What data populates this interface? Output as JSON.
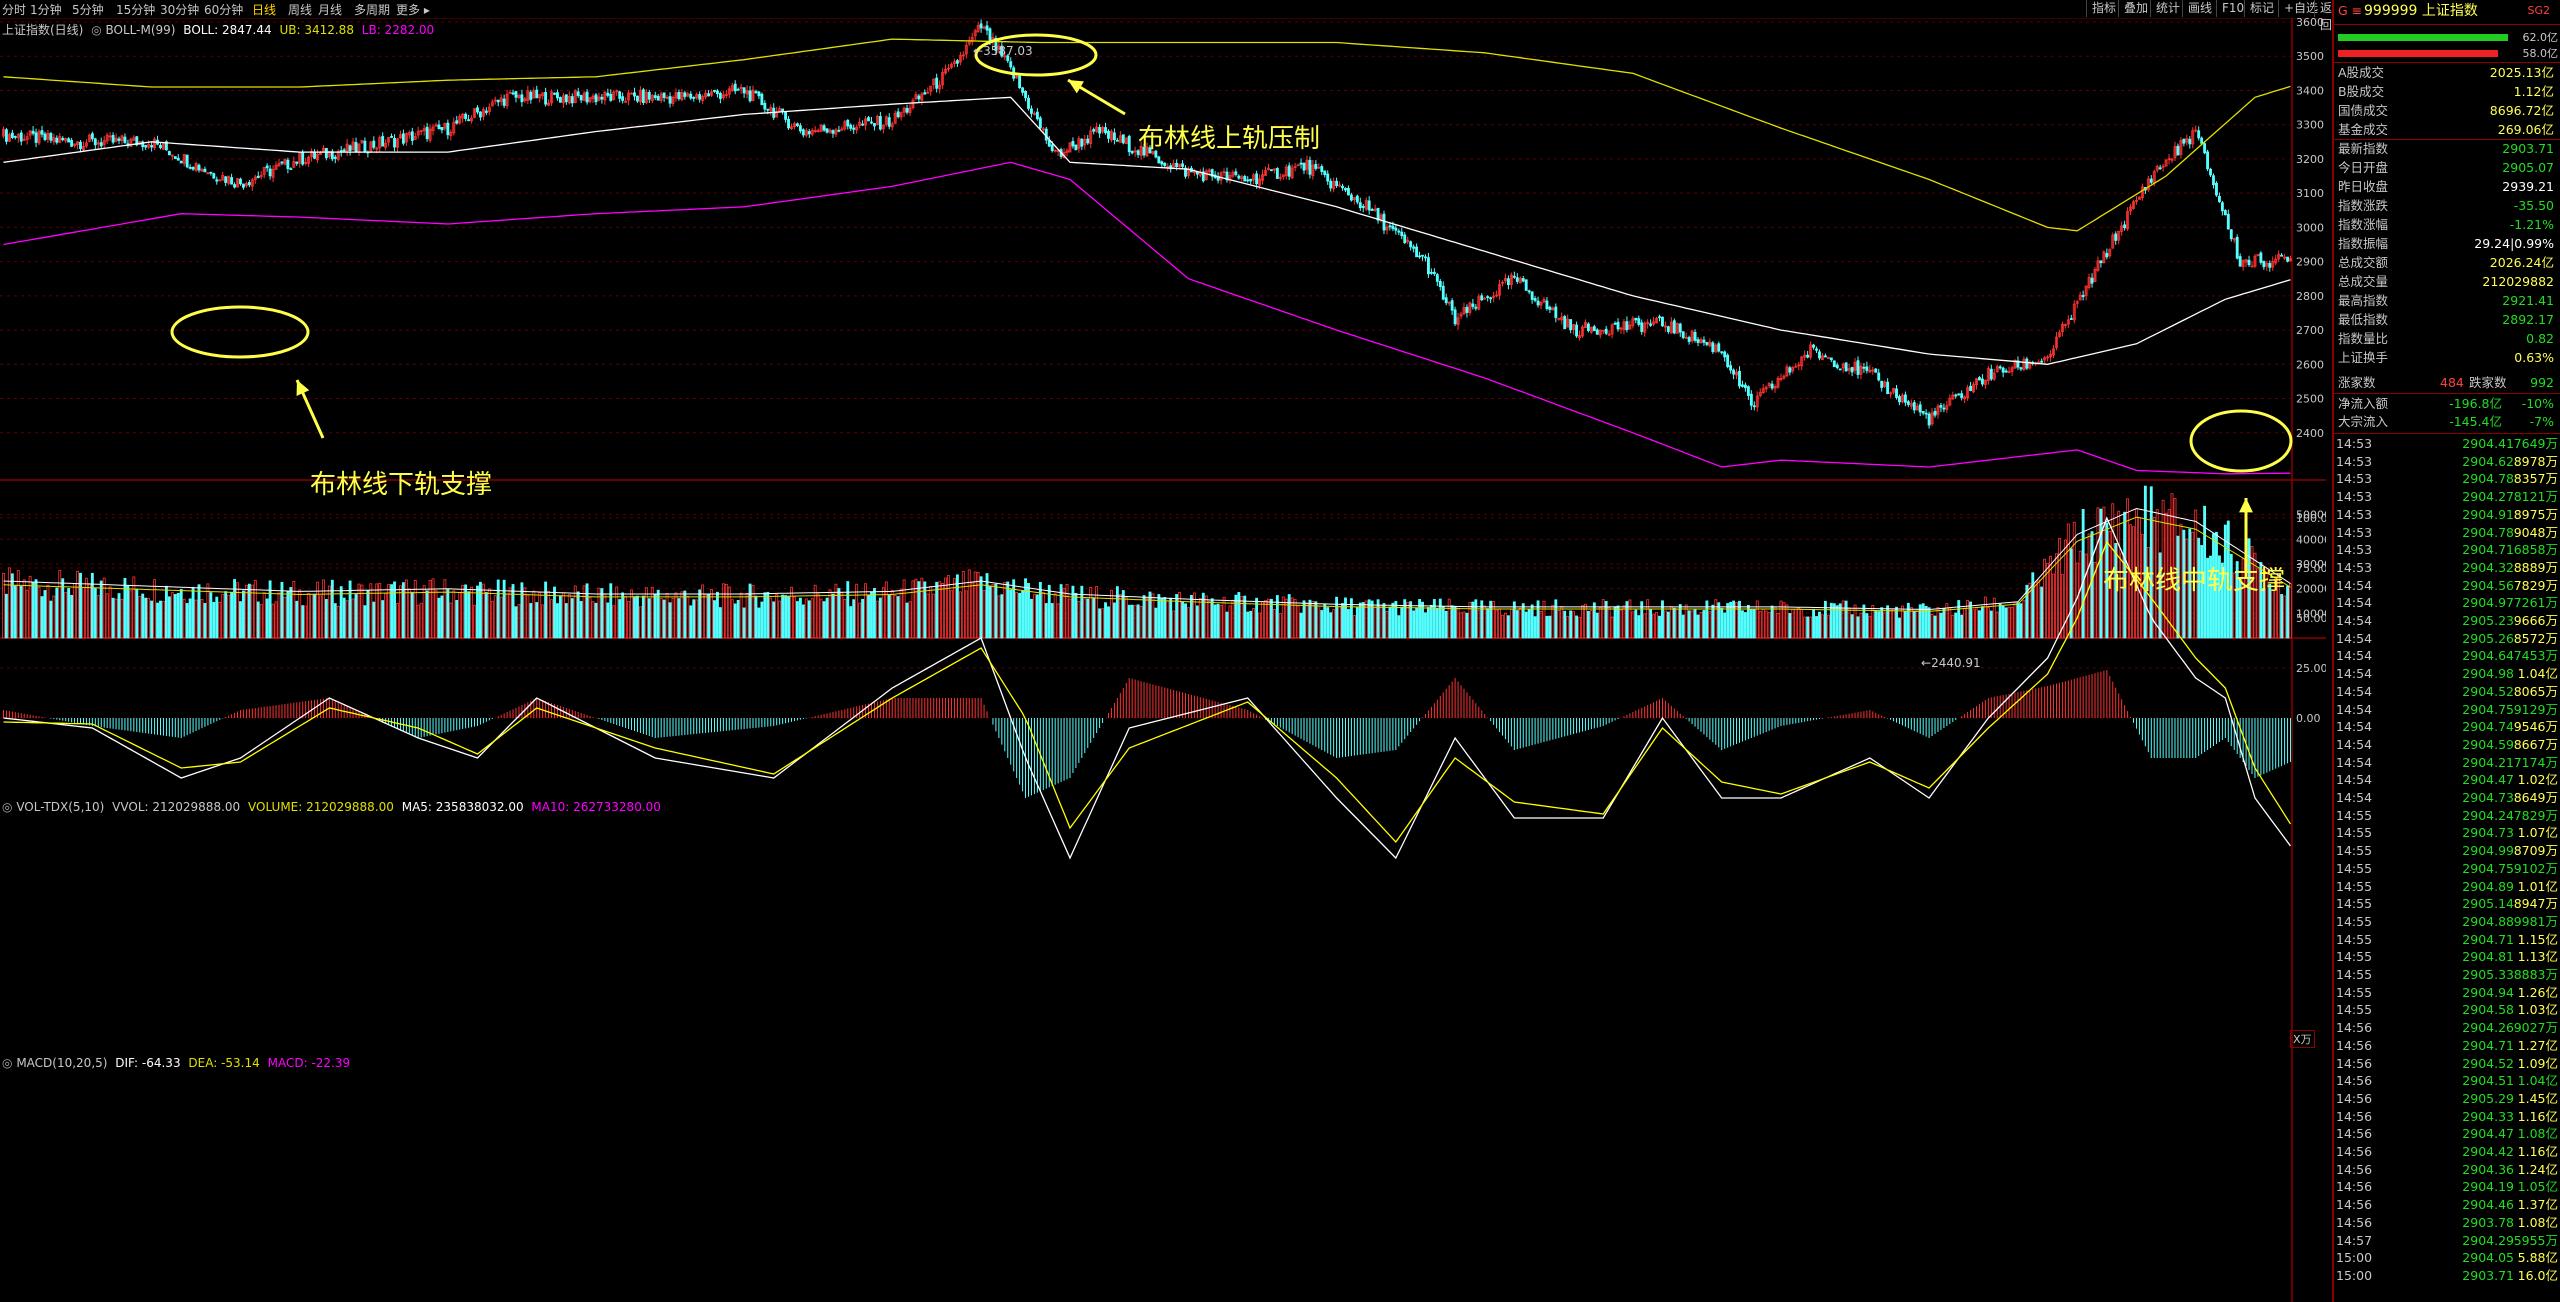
{
  "toolbar": {
    "period_tabs": [
      "分时",
      "1分钟",
      "5分钟",
      "15分钟",
      "30分钟",
      "60分钟",
      "日线",
      "周线",
      "月线",
      "多周期",
      "更多 ▸"
    ],
    "active_period": "日线",
    "right_tabs": [
      "指标",
      "叠加",
      "统计",
      "画线",
      "F10",
      "标记",
      "+自选",
      "返回"
    ]
  },
  "main_legend": {
    "name": "上证指数(日线)",
    "indicator": "BOLL-M(99)",
    "boll": "BOLL: 2847.44",
    "ub": "UB: 3412.88",
    "lb": "LB: 2282.00"
  },
  "vol_legend": {
    "name": "VOL-TDX(5,10)",
    "vvol": "VVOL: 212029888.00",
    "volume": "VOLUME: 212029888.00",
    "ma5": "MA5: 235838032.00",
    "ma10": "MA10: 262733280.00"
  },
  "macd_legend": {
    "name": "MACD(10,20,5)",
    "dif": "DIF: -64.33",
    "dea": "DEA: -53.14",
    "macd": "MACD: -22.39"
  },
  "annotations": {
    "upper": "布林线上轨压制",
    "lower": "布林线下轨支撑",
    "middle": "布林线中轨支撑",
    "high_label": "3587.03",
    "low_label": "2440.91"
  },
  "vol_unit": "X万",
  "colors": {
    "up": "#ff3232",
    "down": "#54ffff",
    "boll_mid": "#ffffff",
    "boll_upper": "#e0e000",
    "boll_lower": "#ff00ff",
    "macd_dif": "#ffffff",
    "macd_dea": "#ffff00",
    "annotation": "#ffff4a"
  },
  "chart_data": {
    "type": "candlestick",
    "title": "上证指数(日线)",
    "price_ticks": [
      2400,
      2500,
      2600,
      2700,
      2800,
      2900,
      3000,
      3100,
      3200,
      3300,
      3400,
      3500,
      3600
    ],
    "volume_ticks": [
      10000,
      20000,
      30000,
      40000,
      50000
    ],
    "macd_ticks": [
      "100.0",
      "75.00",
      "50.00",
      "25.00",
      "0.00"
    ],
    "price_anchors": [
      [
        0,
        3270
      ],
      [
        25,
        3250
      ],
      [
        50,
        3250
      ],
      [
        70,
        3160
      ],
      [
        80,
        3130
      ],
      [
        100,
        3200
      ],
      [
        130,
        3250
      ],
      [
        150,
        3290
      ],
      [
        170,
        3380
      ],
      [
        200,
        3380
      ],
      [
        230,
        3380
      ],
      [
        250,
        3400
      ],
      [
        270,
        3280
      ],
      [
        300,
        3310
      ],
      [
        320,
        3460
      ],
      [
        330,
        3587
      ],
      [
        340,
        3460
      ],
      [
        355,
        3210
      ],
      [
        370,
        3280
      ],
      [
        385,
        3220
      ],
      [
        400,
        3160
      ],
      [
        420,
        3140
      ],
      [
        440,
        3180
      ],
      [
        460,
        3060
      ],
      [
        480,
        2900
      ],
      [
        490,
        2730
      ],
      [
        510,
        2850
      ],
      [
        530,
        2700
      ],
      [
        560,
        2720
      ],
      [
        580,
        2640
      ],
      [
        590,
        2480
      ],
      [
        610,
        2640
      ],
      [
        630,
        2570
      ],
      [
        650,
        2441
      ],
      [
        670,
        2570
      ],
      [
        690,
        2620
      ],
      [
        710,
        2930
      ],
      [
        725,
        3150
      ],
      [
        740,
        3280
      ],
      [
        755,
        2900
      ],
      [
        772,
        2904
      ]
    ],
    "boll_upper_anchors": [
      [
        0,
        3440
      ],
      [
        50,
        3410
      ],
      [
        100,
        3410
      ],
      [
        150,
        3430
      ],
      [
        200,
        3440
      ],
      [
        250,
        3490
      ],
      [
        300,
        3550
      ],
      [
        350,
        3540
      ],
      [
        400,
        3540
      ],
      [
        450,
        3540
      ],
      [
        500,
        3510
      ],
      [
        550,
        3450
      ],
      [
        600,
        3290
      ],
      [
        650,
        3140
      ],
      [
        690,
        3000
      ],
      [
        700,
        2990
      ],
      [
        730,
        3150
      ],
      [
        760,
        3380
      ],
      [
        772,
        3412
      ]
    ],
    "boll_mid_anchors": [
      [
        0,
        3190
      ],
      [
        50,
        3250
      ],
      [
        100,
        3220
      ],
      [
        150,
        3220
      ],
      [
        200,
        3280
      ],
      [
        250,
        3330
      ],
      [
        300,
        3360
      ],
      [
        340,
        3380
      ],
      [
        360,
        3190
      ],
      [
        400,
        3170
      ],
      [
        450,
        3060
      ],
      [
        500,
        2930
      ],
      [
        550,
        2800
      ],
      [
        600,
        2700
      ],
      [
        650,
        2630
      ],
      [
        690,
        2600
      ],
      [
        720,
        2660
      ],
      [
        750,
        2790
      ],
      [
        772,
        2847
      ]
    ],
    "boll_lower_anchors": [
      [
        0,
        2950
      ],
      [
        60,
        3040
      ],
      [
        100,
        3030
      ],
      [
        150,
        3010
      ],
      [
        200,
        3040
      ],
      [
        250,
        3060
      ],
      [
        300,
        3120
      ],
      [
        340,
        3190
      ],
      [
        360,
        3140
      ],
      [
        400,
        2850
      ],
      [
        450,
        2700
      ],
      [
        500,
        2560
      ],
      [
        550,
        2400
      ],
      [
        580,
        2300
      ],
      [
        600,
        2320
      ],
      [
        650,
        2300
      ],
      [
        700,
        2350
      ],
      [
        720,
        2290
      ],
      [
        750,
        2280
      ],
      [
        772,
        2282
      ]
    ],
    "volume_anchors": [
      [
        0,
        22000
      ],
      [
        50,
        20000
      ],
      [
        100,
        18000
      ],
      [
        150,
        19000
      ],
      [
        200,
        17000
      ],
      [
        250,
        17000
      ],
      [
        300,
        18000
      ],
      [
        330,
        22000
      ],
      [
        360,
        17000
      ],
      [
        400,
        15000
      ],
      [
        450,
        13000
      ],
      [
        500,
        12000
      ],
      [
        550,
        12000
      ],
      [
        600,
        12000
      ],
      [
        650,
        11000
      ],
      [
        680,
        14000
      ],
      [
        700,
        40000
      ],
      [
        720,
        50000
      ],
      [
        740,
        45000
      ],
      [
        772,
        21000
      ]
    ],
    "dif_anchors": [
      [
        0,
        0
      ],
      [
        30,
        -5
      ],
      [
        60,
        -30
      ],
      [
        80,
        -20
      ],
      [
        110,
        10
      ],
      [
        140,
        -10
      ],
      [
        160,
        -20
      ],
      [
        180,
        10
      ],
      [
        220,
        -20
      ],
      [
        260,
        -30
      ],
      [
        300,
        15
      ],
      [
        330,
        40
      ],
      [
        345,
        -20
      ],
      [
        360,
        -70
      ],
      [
        380,
        -5
      ],
      [
        420,
        10
      ],
      [
        450,
        -40
      ],
      [
        470,
        -70
      ],
      [
        490,
        -10
      ],
      [
        510,
        -50
      ],
      [
        540,
        -50
      ],
      [
        560,
        0
      ],
      [
        580,
        -40
      ],
      [
        600,
        -40
      ],
      [
        630,
        -20
      ],
      [
        650,
        -40
      ],
      [
        670,
        0
      ],
      [
        690,
        30
      ],
      [
        700,
        60
      ],
      [
        710,
        100
      ],
      [
        725,
        50
      ],
      [
        740,
        20
      ],
      [
        750,
        10
      ],
      [
        760,
        -40
      ],
      [
        772,
        -64
      ]
    ],
    "dea_anchors": [
      [
        0,
        -2
      ],
      [
        30,
        -3
      ],
      [
        60,
        -25
      ],
      [
        80,
        -22
      ],
      [
        110,
        5
      ],
      [
        140,
        -5
      ],
      [
        160,
        -18
      ],
      [
        180,
        5
      ],
      [
        220,
        -15
      ],
      [
        260,
        -28
      ],
      [
        300,
        10
      ],
      [
        330,
        35
      ],
      [
        345,
        0
      ],
      [
        360,
        -55
      ],
      [
        380,
        -15
      ],
      [
        420,
        8
      ],
      [
        450,
        -30
      ],
      [
        470,
        -62
      ],
      [
        490,
        -20
      ],
      [
        510,
        -42
      ],
      [
        540,
        -48
      ],
      [
        560,
        -5
      ],
      [
        580,
        -32
      ],
      [
        600,
        -38
      ],
      [
        630,
        -22
      ],
      [
        650,
        -35
      ],
      [
        670,
        -5
      ],
      [
        690,
        22
      ],
      [
        700,
        50
      ],
      [
        710,
        88
      ],
      [
        725,
        60
      ],
      [
        740,
        30
      ],
      [
        750,
        15
      ],
      [
        760,
        -25
      ],
      [
        772,
        -53
      ]
    ],
    "n_bars": 773
  },
  "panel": {
    "code_prefix": "G ≡",
    "code": "999999 上证指数",
    "suffix": "SG2",
    "bar1": "62.0亿",
    "bar2": "58.0亿",
    "stats": [
      {
        "label": "A股成交",
        "value": "2025.13亿",
        "color": "#ffff55"
      },
      {
        "label": "B股成交",
        "value": "1.12亿",
        "color": "#ffff55"
      },
      {
        "label": "国债成交",
        "value": "8696.72亿",
        "color": "#ffff55"
      },
      {
        "label": "基金成交",
        "value": "269.06亿",
        "color": "#ffff55"
      },
      {
        "label": "最新指数",
        "value": "2903.71",
        "color": "#22dd22"
      },
      {
        "label": "今日开盘",
        "value": "2905.07",
        "color": "#22dd22"
      },
      {
        "label": "昨日收盘",
        "value": "2939.21",
        "color": "#ffffff"
      },
      {
        "label": "指数涨跌",
        "value": "-35.50",
        "color": "#22dd22"
      },
      {
        "label": "指数涨幅",
        "value": "-1.21%",
        "color": "#22dd22"
      },
      {
        "label": "指数振幅",
        "value": "29.24|0.99%",
        "color": "#ffffff"
      },
      {
        "label": "总成交额",
        "value": "2026.24亿",
        "color": "#ffff55"
      },
      {
        "label": "总成交量",
        "value": "212029882",
        "color": "#ffff55"
      },
      {
        "label": "最高指数",
        "value": "2921.41",
        "color": "#22dd22"
      },
      {
        "label": "最低指数",
        "value": "2892.17",
        "color": "#22dd22"
      },
      {
        "label": "指数量比",
        "value": "0.82",
        "color": "#22dd22"
      },
      {
        "label": "上证换手",
        "value": "0.63%",
        "color": "#ffff55"
      }
    ],
    "up_label": "涨家数",
    "up_count": "484",
    "down_label": "跌家数",
    "down_count": "992",
    "net_flow_label": "净流入额",
    "net_flow_value": "-196.8亿",
    "net_flow_pct": "-10%",
    "block_label": "大宗流入",
    "block_value": "-145.4亿",
    "block_pct": "-7%",
    "ticks": [
      [
        "14:53",
        "2904.41",
        "7649万"
      ],
      [
        "14:53",
        "2904.62",
        "8978万"
      ],
      [
        "14:53",
        "2904.78",
        "8357万"
      ],
      [
        "14:53",
        "2904.27",
        "8121万"
      ],
      [
        "14:53",
        "2904.91",
        "8975万"
      ],
      [
        "14:53",
        "2904.78",
        "9048万"
      ],
      [
        "14:53",
        "2904.71",
        "6858万"
      ],
      [
        "14:53",
        "2904.32",
        "8889万"
      ],
      [
        "14:54",
        "2904.56",
        "7829万"
      ],
      [
        "14:54",
        "2904.97",
        "7261万"
      ],
      [
        "14:54",
        "2905.23",
        "9666万"
      ],
      [
        "14:54",
        "2905.26",
        "8572万"
      ],
      [
        "14:54",
        "2904.64",
        "7453万"
      ],
      [
        "14:54",
        "2904.98",
        "1.04亿"
      ],
      [
        "14:54",
        "2904.52",
        "8065万"
      ],
      [
        "14:54",
        "2904.75",
        "9129万"
      ],
      [
        "14:54",
        "2904.74",
        "9546万"
      ],
      [
        "14:54",
        "2904.59",
        "8667万"
      ],
      [
        "14:54",
        "2904.21",
        "7174万"
      ],
      [
        "14:54",
        "2904.47",
        "1.02亿"
      ],
      [
        "14:54",
        "2904.73",
        "8649万"
      ],
      [
        "14:55",
        "2904.24",
        "7829万"
      ],
      [
        "14:55",
        "2904.73",
        "1.07亿"
      ],
      [
        "14:55",
        "2904.99",
        "8709万"
      ],
      [
        "14:55",
        "2904.75",
        "9102万"
      ],
      [
        "14:55",
        "2904.89",
        "1.01亿"
      ],
      [
        "14:55",
        "2905.14",
        "8947万"
      ],
      [
        "14:55",
        "2904.88",
        "9981万"
      ],
      [
        "14:55",
        "2904.71",
        "1.15亿"
      ],
      [
        "14:55",
        "2904.81",
        "1.13亿"
      ],
      [
        "14:55",
        "2905.33",
        "8883万"
      ],
      [
        "14:55",
        "2904.94",
        "1.26亿"
      ],
      [
        "14:55",
        "2904.58",
        "1.03亿"
      ],
      [
        "14:56",
        "2904.26",
        "9027万"
      ],
      [
        "14:56",
        "2904.71",
        "1.27亿"
      ],
      [
        "14:56",
        "2904.52",
        "1.09亿"
      ],
      [
        "14:56",
        "2904.51",
        "1.04亿"
      ],
      [
        "14:56",
        "2905.29",
        "1.45亿"
      ],
      [
        "14:56",
        "2904.33",
        "1.16亿"
      ],
      [
        "14:56",
        "2904.47",
        "1.08亿"
      ],
      [
        "14:56",
        "2904.42",
        "1.16亿"
      ],
      [
        "14:56",
        "2904.36",
        "1.24亿"
      ],
      [
        "14:56",
        "2904.19",
        "1.05亿"
      ],
      [
        "14:56",
        "2904.46",
        "1.37亿"
      ],
      [
        "14:56",
        "2903.78",
        "1.08亿"
      ],
      [
        "14:57",
        "2904.29",
        "5955万"
      ],
      [
        "15:00",
        "2904.05",
        "5.88亿"
      ],
      [
        "15:00",
        "2903.71",
        "16.0亿"
      ]
    ]
  }
}
